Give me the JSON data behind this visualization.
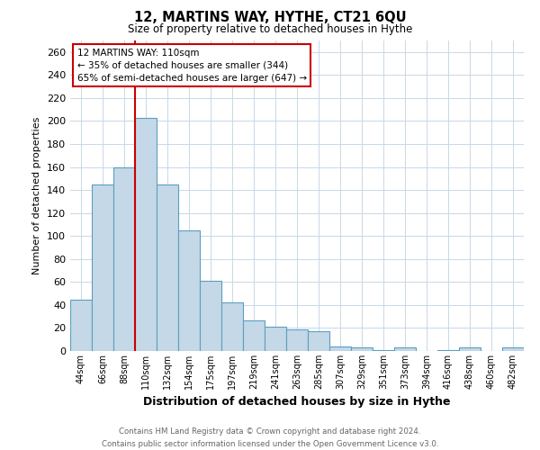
{
  "title": "12, MARTINS WAY, HYTHE, CT21 6QU",
  "subtitle": "Size of property relative to detached houses in Hythe",
  "xlabel": "Distribution of detached houses by size in Hythe",
  "ylabel": "Number of detached properties",
  "bar_labels": [
    "44sqm",
    "66sqm",
    "88sqm",
    "110sqm",
    "132sqm",
    "154sqm",
    "175sqm",
    "197sqm",
    "219sqm",
    "241sqm",
    "263sqm",
    "285sqm",
    "307sqm",
    "329sqm",
    "351sqm",
    "373sqm",
    "394sqm",
    "416sqm",
    "438sqm",
    "460sqm",
    "482sqm"
  ],
  "bar_heights": [
    45,
    145,
    160,
    203,
    145,
    105,
    61,
    42,
    27,
    21,
    19,
    17,
    4,
    3,
    1,
    3,
    0,
    1,
    3,
    0,
    3
  ],
  "bar_color": "#c5d8e8",
  "bar_edge_color": "#5a9fc0",
  "vline_index": 3,
  "vline_color": "#cc0000",
  "ylim": [
    0,
    270
  ],
  "yticks": [
    0,
    20,
    40,
    60,
    80,
    100,
    120,
    140,
    160,
    180,
    200,
    220,
    240,
    260
  ],
  "annotation_title": "12 MARTINS WAY: 110sqm",
  "annotation_line1": "← 35% of detached houses are smaller (344)",
  "annotation_line2": "65% of semi-detached houses are larger (647) →",
  "annotation_box_color": "#ffffff",
  "annotation_box_edge": "#cc0000",
  "footer_line1": "Contains HM Land Registry data © Crown copyright and database right 2024.",
  "footer_line2": "Contains public sector information licensed under the Open Government Licence v3.0.",
  "bg_color": "#ffffff",
  "grid_color": "#c8d8e8"
}
